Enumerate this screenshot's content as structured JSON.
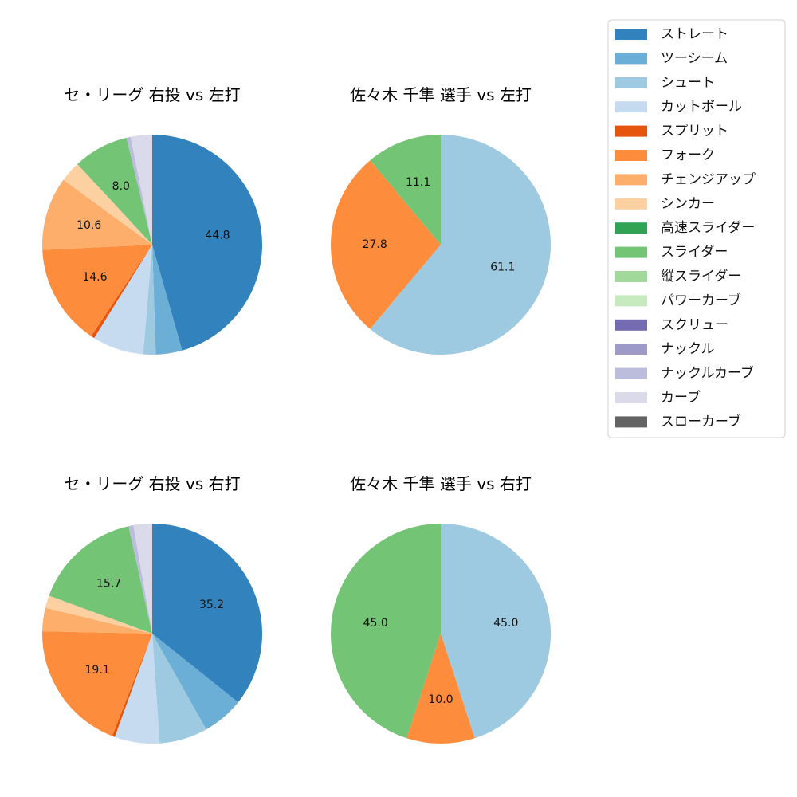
{
  "chart_data": [
    {
      "type": "pie",
      "title": "セ・リーグ 右投 vs 左打",
      "slices": [
        {
          "label": "ストレート",
          "value": 44.8,
          "color": "#3182bd",
          "shown": "44.8"
        },
        {
          "label": "ツーシーム",
          "value": 3.8,
          "color": "#6baed6",
          "shown": ""
        },
        {
          "label": "シュート",
          "value": 1.8,
          "color": "#9ecae1",
          "shown": ""
        },
        {
          "label": "カットボール",
          "value": 7.4,
          "color": "#c6dbef",
          "shown": ""
        },
        {
          "label": "スプリット",
          "value": 0.5,
          "color": "#e6550d",
          "shown": ""
        },
        {
          "label": "フォーク",
          "value": 14.6,
          "color": "#fd8d3c",
          "shown": "14.6"
        },
        {
          "label": "チェンジアップ",
          "value": 10.6,
          "color": "#fdae6b",
          "shown": "10.6"
        },
        {
          "label": "シンカー",
          "value": 3.0,
          "color": "#fdd0a2",
          "shown": ""
        },
        {
          "label": "スライダー",
          "value": 8.0,
          "color": "#74c476",
          "shown": "8.0"
        },
        {
          "label": "ナックルカーブ",
          "value": 0.6,
          "color": "#bcbddc",
          "shown": ""
        },
        {
          "label": "カーブ",
          "value": 3.1,
          "color": "#dadaeb",
          "shown": ""
        }
      ]
    },
    {
      "type": "pie",
      "title": "佐々木 千隼 選手 vs 左打",
      "slices": [
        {
          "label": "シュート",
          "value": 61.1,
          "color": "#9ecae1",
          "shown": "61.1"
        },
        {
          "label": "フォーク",
          "value": 27.8,
          "color": "#fd8d3c",
          "shown": "27.8"
        },
        {
          "label": "スライダー",
          "value": 11.1,
          "color": "#74c476",
          "shown": "11.1"
        }
      ]
    },
    {
      "type": "pie",
      "title": "セ・リーグ 右投 vs 右打",
      "slices": [
        {
          "label": "ストレート",
          "value": 35.2,
          "color": "#3182bd",
          "shown": "35.2"
        },
        {
          "label": "ツーシーム",
          "value": 6.0,
          "color": "#6baed6",
          "shown": ""
        },
        {
          "label": "シュート",
          "value": 7.0,
          "color": "#9ecae1",
          "shown": ""
        },
        {
          "label": "カットボール",
          "value": 6.5,
          "color": "#c6dbef",
          "shown": ""
        },
        {
          "label": "スプリット",
          "value": 0.4,
          "color": "#e6550d",
          "shown": ""
        },
        {
          "label": "フォーク",
          "value": 19.1,
          "color": "#fd8d3c",
          "shown": "19.1"
        },
        {
          "label": "チェンジアップ",
          "value": 3.4,
          "color": "#fdae6b",
          "shown": ""
        },
        {
          "label": "シンカー",
          "value": 1.8,
          "color": "#fdd0a2",
          "shown": ""
        },
        {
          "label": "スライダー",
          "value": 15.7,
          "color": "#74c476",
          "shown": "15.7"
        },
        {
          "label": "ナックルカーブ",
          "value": 0.7,
          "color": "#bcbddc",
          "shown": ""
        },
        {
          "label": "カーブ",
          "value": 2.7,
          "color": "#dadaeb",
          "shown": ""
        }
      ]
    },
    {
      "type": "pie",
      "title": "佐々木 千隼 選手 vs 右打",
      "slices": [
        {
          "label": "シュート",
          "value": 45.0,
          "color": "#9ecae1",
          "shown": "45.0"
        },
        {
          "label": "フォーク",
          "value": 10.0,
          "color": "#fd8d3c",
          "shown": "10.0"
        },
        {
          "label": "スライダー",
          "value": 45.0,
          "color": "#74c476",
          "shown": "45.0"
        }
      ]
    }
  ],
  "legend": [
    {
      "label": "ストレート",
      "color": "#3182bd"
    },
    {
      "label": "ツーシーム",
      "color": "#6baed6"
    },
    {
      "label": "シュート",
      "color": "#9ecae1"
    },
    {
      "label": "カットボール",
      "color": "#c6dbef"
    },
    {
      "label": "スプリット",
      "color": "#e6550d"
    },
    {
      "label": "フォーク",
      "color": "#fd8d3c"
    },
    {
      "label": "チェンジアップ",
      "color": "#fdae6b"
    },
    {
      "label": "シンカー",
      "color": "#fdd0a2"
    },
    {
      "label": "高速スライダー",
      "color": "#31a354"
    },
    {
      "label": "スライダー",
      "color": "#74c476"
    },
    {
      "label": "縦スライダー",
      "color": "#a1d99b"
    },
    {
      "label": "パワーカーブ",
      "color": "#c7e9c0"
    },
    {
      "label": "スクリュー",
      "color": "#756bb1"
    },
    {
      "label": "ナックル",
      "color": "#9e9ac8"
    },
    {
      "label": "ナックルカーブ",
      "color": "#bcbddc"
    },
    {
      "label": "カーブ",
      "color": "#dadaeb"
    },
    {
      "label": "スローカーブ",
      "color": "#636363"
    }
  ]
}
